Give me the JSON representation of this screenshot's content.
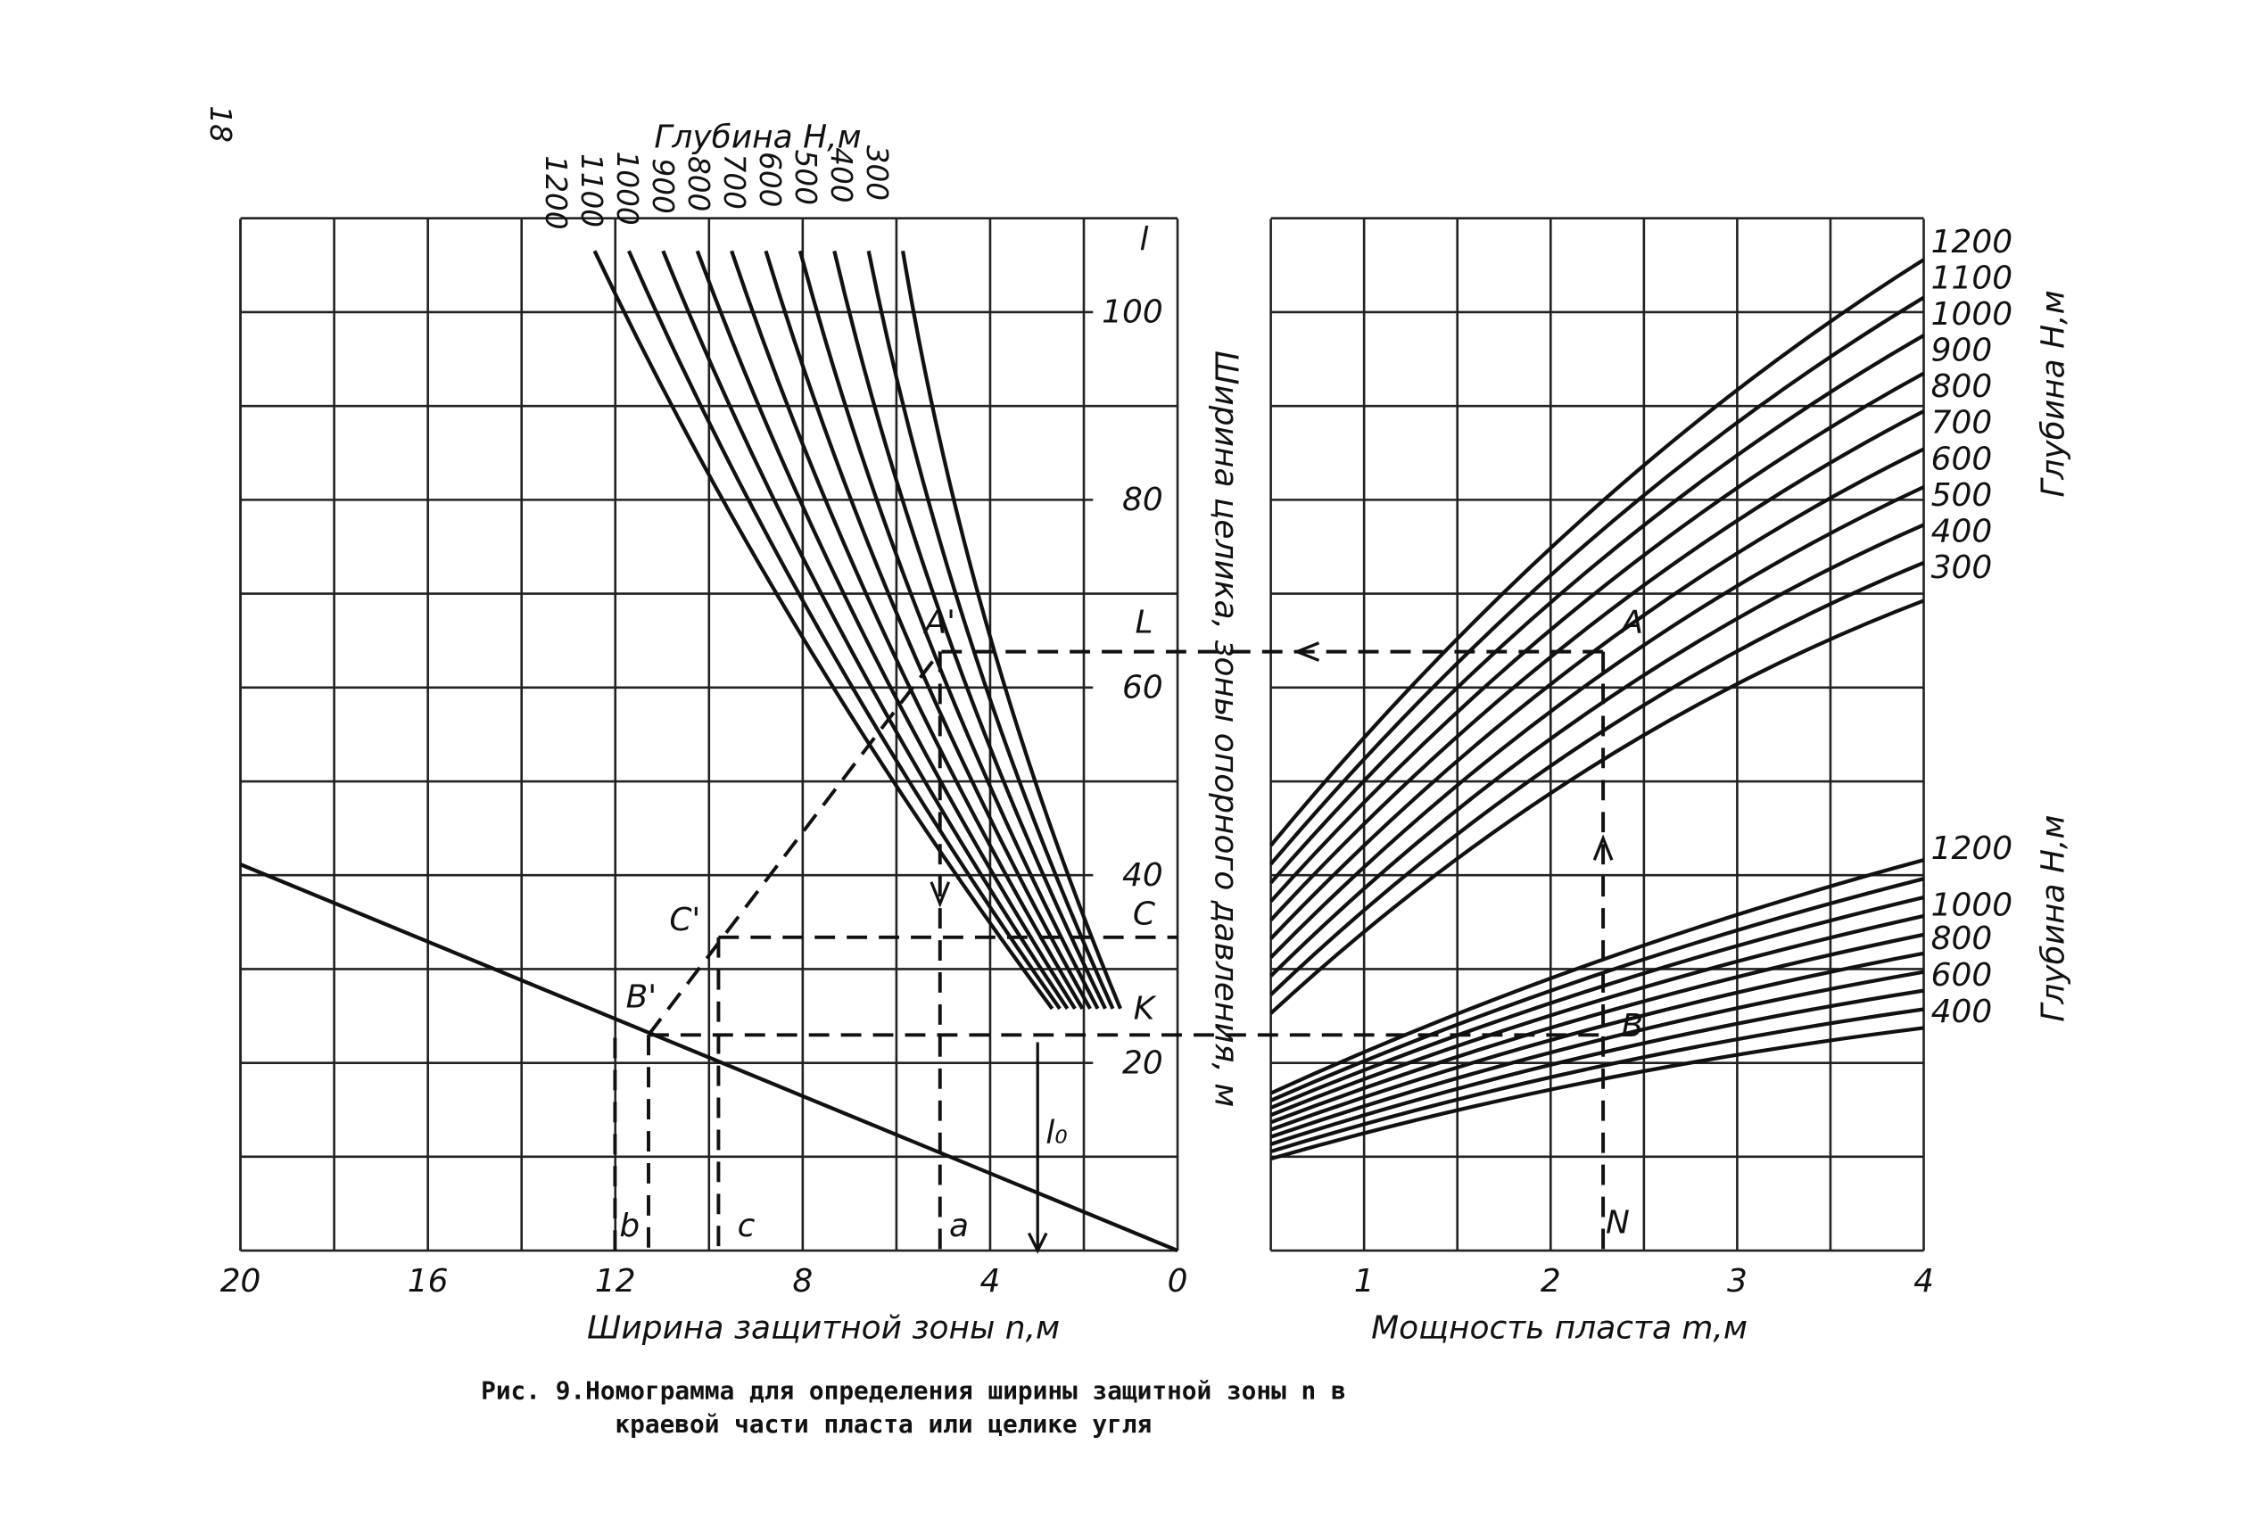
{
  "page_number": "18",
  "top_depth": {
    "title": "Глубина H,м",
    "labels": [
      "1200",
      "1100",
      "1000",
      "900",
      "800",
      "700",
      "600",
      "500",
      "400",
      "300"
    ]
  },
  "axis_l": {
    "symbol": "l",
    "ticks": [
      "100",
      "80",
      "60",
      "40",
      "20"
    ],
    "title": "Ширина целика, зоны опорного давления, м"
  },
  "right_upper": {
    "labels": [
      "1200",
      "1100",
      "1000",
      "900",
      "800",
      "700",
      "600",
      "500",
      "400",
      "300"
    ],
    "title": "Глубина H,м"
  },
  "right_lower": {
    "labels": [
      "1200",
      "1000",
      "800",
      "600",
      "400"
    ],
    "title": "Глубина H,м"
  },
  "points": {
    "A1": "A'",
    "L": "L",
    "A": "A",
    "C1": "C'",
    "C": "C",
    "B1": "B'",
    "K": "K",
    "B": "B",
    "b": "b",
    "c": "c",
    "a": "a",
    "N": "N",
    "l0": "l₀"
  },
  "x_left": {
    "ticks": [
      "20",
      "16",
      "12",
      "8",
      "4",
      "0"
    ],
    "title": "Ширина защитной зоны n,м"
  },
  "x_right": {
    "ticks": [
      "1",
      "2",
      "3",
      "4"
    ],
    "title": "Мощность пласта m,м"
  },
  "caption": [
    "Рис. 9.Номограмма для определения ширины защитной зоны n в",
    "краевой части пласта или   целике угля"
  ]
}
